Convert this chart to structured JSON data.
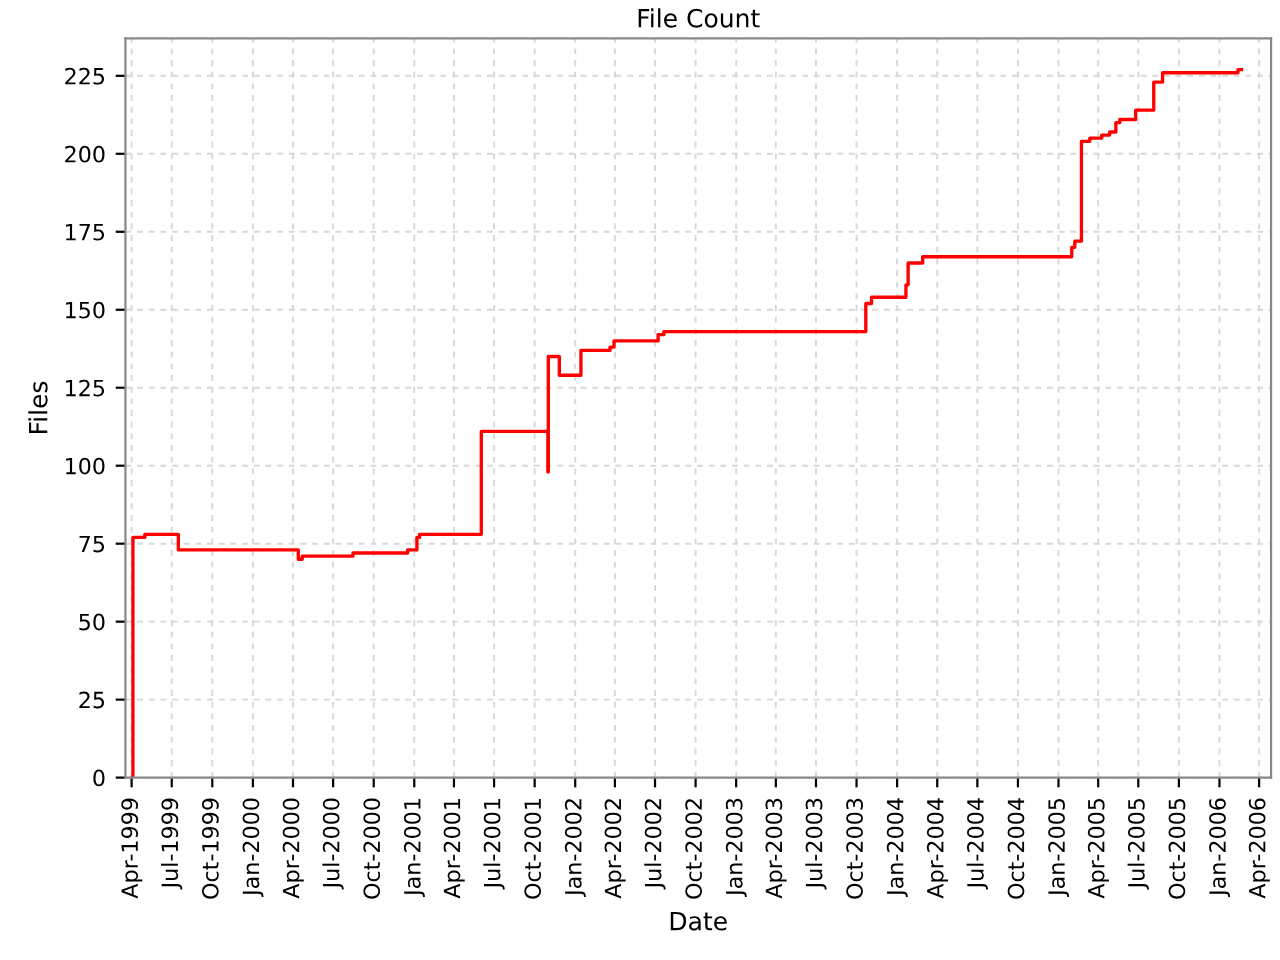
{
  "chart_data": {
    "type": "step",
    "title": "File Count",
    "xlabel": "Date",
    "ylabel": "Files",
    "x": [
      "1999-04-03",
      "1999-04-04",
      "1999-05-01",
      "1999-07-16",
      "2000-04-13",
      "2000-04-22",
      "2000-08-15",
      "2000-12-17",
      "2001-01-07",
      "2001-01-13",
      "2001-06-02",
      "2001-10-31",
      "2001-11-01",
      "2001-11-26",
      "2002-01-14",
      "2002-03-21",
      "2002-03-30",
      "2002-07-08",
      "2002-07-21",
      "2003-10-22",
      "2003-11-04",
      "2004-01-21",
      "2004-01-26",
      "2004-02-28",
      "2005-01-31",
      "2005-02-07",
      "2005-02-22",
      "2005-03-13",
      "2005-04-09",
      "2005-04-27",
      "2005-05-11",
      "2005-05-20",
      "2005-06-25",
      "2005-08-05",
      "2005-08-25",
      "2006-02-12",
      "2006-02-20"
    ],
    "series": [
      {
        "color": "#ff0000",
        "values": [
          0,
          77,
          78,
          73,
          70,
          71,
          72,
          73,
          77,
          78,
          111,
          98,
          135,
          129,
          137,
          138,
          140,
          142,
          143,
          152,
          154,
          158,
          165,
          167,
          170,
          172,
          204,
          205,
          206,
          207,
          210,
          211,
          214,
          223,
          226,
          227,
          227
        ]
      }
    ],
    "xlim": [
      "1999-03-18",
      "2006-04-28"
    ],
    "ylim": [
      0,
      237
    ],
    "xticks": [
      {
        "value": "1999-04-01",
        "label": "Apr-1999"
      },
      {
        "value": "1999-07-01",
        "label": "Jul-1999"
      },
      {
        "value": "1999-10-01",
        "label": "Oct-1999"
      },
      {
        "value": "2000-01-01",
        "label": "Jan-2000"
      },
      {
        "value": "2000-04-01",
        "label": "Apr-2000"
      },
      {
        "value": "2000-07-01",
        "label": "Jul-2000"
      },
      {
        "value": "2000-10-01",
        "label": "Oct-2000"
      },
      {
        "value": "2001-01-01",
        "label": "Jan-2001"
      },
      {
        "value": "2001-04-01",
        "label": "Apr-2001"
      },
      {
        "value": "2001-07-01",
        "label": "Jul-2001"
      },
      {
        "value": "2001-10-01",
        "label": "Oct-2001"
      },
      {
        "value": "2002-01-01",
        "label": "Jan-2002"
      },
      {
        "value": "2002-04-01",
        "label": "Apr-2002"
      },
      {
        "value": "2002-07-01",
        "label": "Jul-2002"
      },
      {
        "value": "2002-10-01",
        "label": "Oct-2002"
      },
      {
        "value": "2003-01-01",
        "label": "Jan-2003"
      },
      {
        "value": "2003-04-01",
        "label": "Apr-2003"
      },
      {
        "value": "2003-07-01",
        "label": "Jul-2003"
      },
      {
        "value": "2003-10-01",
        "label": "Oct-2003"
      },
      {
        "value": "2004-01-01",
        "label": "Jan-2004"
      },
      {
        "value": "2004-04-01",
        "label": "Apr-2004"
      },
      {
        "value": "2004-07-01",
        "label": "Jul-2004"
      },
      {
        "value": "2004-10-01",
        "label": "Oct-2004"
      },
      {
        "value": "2005-01-01",
        "label": "Jan-2005"
      },
      {
        "value": "2005-04-01",
        "label": "Apr-2005"
      },
      {
        "value": "2005-07-01",
        "label": "Jul-2005"
      },
      {
        "value": "2005-10-01",
        "label": "Oct-2005"
      },
      {
        "value": "2006-01-01",
        "label": "Jan-2006"
      },
      {
        "value": "2006-04-01",
        "label": "Apr-2006"
      }
    ],
    "yticks": [
      0,
      25,
      50,
      75,
      100,
      125,
      150,
      175,
      200,
      225
    ],
    "grid": true
  }
}
